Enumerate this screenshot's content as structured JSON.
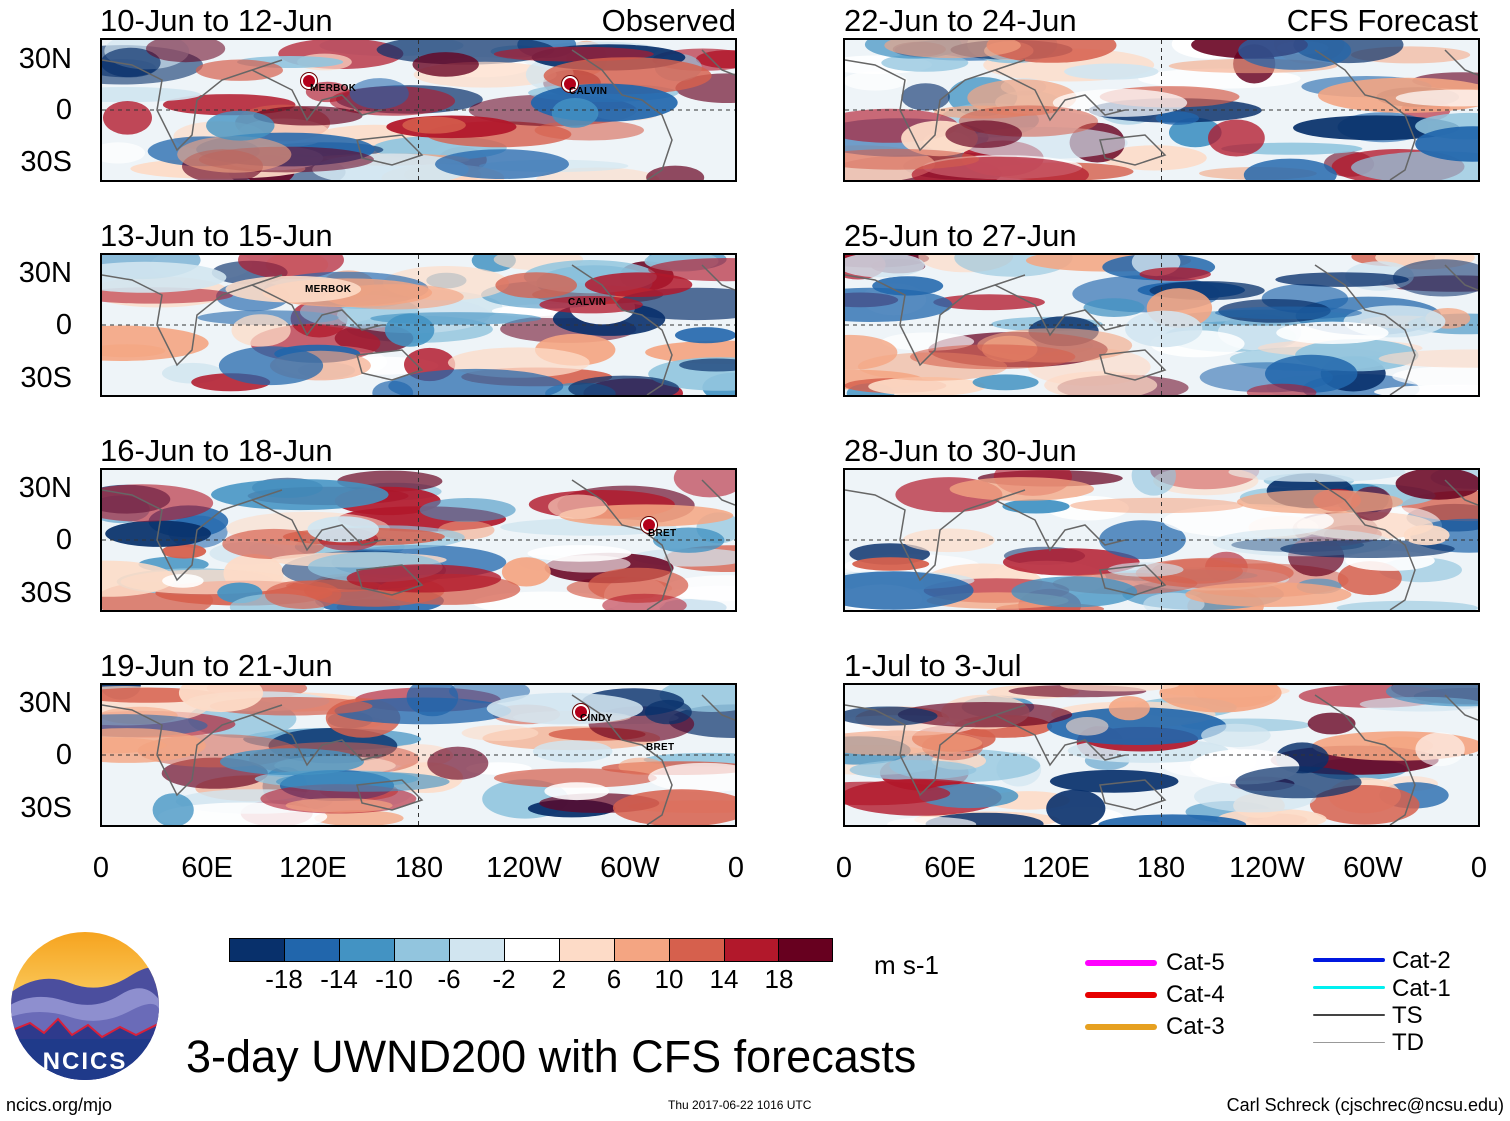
{
  "left_column_label": "Observed",
  "right_column_label": "CFS Forecast",
  "panels": [
    {
      "period": "10-Jun to 12-Jun",
      "storms": [
        "MERBOK",
        "CALVIN"
      ]
    },
    {
      "period": "13-Jun to 15-Jun",
      "storms": [
        "MERBOK",
        "CALVIN"
      ]
    },
    {
      "period": "16-Jun to 18-Jun",
      "storms": [
        "BRET"
      ]
    },
    {
      "period": "19-Jun to 21-Jun",
      "storms": [
        "CINDY",
        "BRET"
      ]
    },
    {
      "period": "22-Jun to 24-Jun",
      "storms": []
    },
    {
      "period": "25-Jun to 27-Jun",
      "storms": []
    },
    {
      "period": "28-Jun to 30-Jun",
      "storms": []
    },
    {
      "period": "1-Jul to 3-Jul",
      "storms": []
    }
  ],
  "latitude_labels": [
    "30N",
    "0",
    "30S"
  ],
  "longitude_labels": [
    "0",
    "60E",
    "120E",
    "180",
    "120W",
    "60W",
    "0"
  ],
  "colorbar": {
    "colors": [
      "#08306b",
      "#2166ac",
      "#4393c3",
      "#92c5de",
      "#d1e5f0",
      "#ffffff",
      "#fddbc7",
      "#f4a582",
      "#d6604d",
      "#b2182b",
      "#67001f"
    ],
    "labels": [
      "-18",
      "-14",
      "-10",
      "-6",
      "-2",
      "2",
      "6",
      "10",
      "14",
      "18"
    ],
    "units": "m s-1"
  },
  "storm_legend": [
    {
      "label": "Cat-5",
      "color": "#ff00ff"
    },
    {
      "label": "Cat-4",
      "color": "#e60000"
    },
    {
      "label": "Cat-3",
      "color": "#e6a020"
    },
    {
      "label": "Cat-2",
      "color": "#0018e0"
    },
    {
      "label": "Cat-1",
      "color": "#00f0f0"
    },
    {
      "label": "TS",
      "color": "#444444"
    },
    {
      "label": "TD",
      "color": "#999999"
    }
  ],
  "logo_text": "NCICS",
  "main_title": "3-day UWND200 with CFS forecasts",
  "footer": {
    "left": "ncics.org/mjo",
    "center": "Thu 2017-06-22 1016 UTC",
    "right": "Carl Schreck (cjschrec@ncsu.edu)"
  }
}
